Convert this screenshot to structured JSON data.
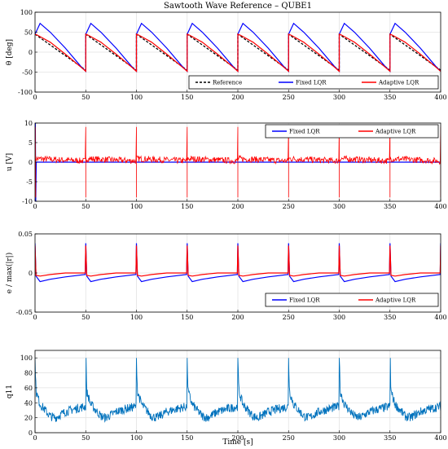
{
  "figure_title": "Sawtooth Wave Reference – QUBE1",
  "x_axis_label": "Time [s]",
  "colors": {
    "reference": "#000000",
    "fixed": "#0000ff",
    "adaptive": "#ff0000",
    "q11": "#0072bd",
    "grid": "#e3e3e3"
  },
  "chart_data": [
    {
      "type": "line",
      "ylabel": "θ [deg]",
      "xlim": [
        0,
        400
      ],
      "ylim": [
        -100,
        100
      ],
      "x_ticks": [
        0,
        50,
        100,
        150,
        200,
        250,
        300,
        350,
        400
      ],
      "y_ticks": [
        -100,
        -50,
        0,
        50,
        100
      ],
      "grid": true,
      "legend_position": "bottom-right",
      "period": 50,
      "series": [
        {
          "name": "Reference",
          "style": "dashed",
          "color": "#000000",
          "x": [
            0,
            50
          ],
          "y": [
            45,
            -45
          ]
        },
        {
          "name": "Fixed LQR",
          "style": "solid",
          "color": "#0000ff",
          "x": [
            0,
            5,
            15,
            30,
            45,
            50
          ],
          "y": [
            45,
            72,
            50,
            10,
            -35,
            -48
          ]
        },
        {
          "name": "Adaptive LQR",
          "style": "solid",
          "color": "#ff0000",
          "x": [
            0,
            2,
            15,
            30,
            45,
            50
          ],
          "y": [
            45,
            43,
            25,
            -5,
            -37,
            -48
          ]
        }
      ]
    },
    {
      "type": "line",
      "ylabel": "u [V]",
      "xlim": [
        0,
        400
      ],
      "ylim": [
        -10,
        10
      ],
      "x_ticks": [
        0,
        50,
        100,
        150,
        200,
        250,
        300,
        350,
        400
      ],
      "y_ticks": [
        -10,
        -5,
        0,
        5,
        10
      ],
      "grid": true,
      "legend_position": "top-right",
      "series": [
        {
          "name": "Fixed LQR",
          "color": "#0000ff",
          "baseline": 0,
          "spike_high": 10,
          "spike_low": -10
        },
        {
          "name": "Adaptive LQR",
          "color": "#ff0000",
          "baseline": 0.3,
          "noise_amplitude": 0.8,
          "spike_high": 9,
          "spike_low": -9
        }
      ]
    },
    {
      "type": "line",
      "ylabel": "e / max(|r|)",
      "xlim": [
        0,
        400
      ],
      "ylim": [
        -0.05,
        0.05
      ],
      "x_ticks": [
        0,
        50,
        100,
        150,
        200,
        250,
        300,
        350,
        400
      ],
      "y_ticks": [
        -0.05,
        0,
        0.05
      ],
      "y_tick_labels": [
        "-0.05",
        "0",
        "0.05"
      ],
      "grid": true,
      "legend_position": "bottom-right",
      "period": 50,
      "series": [
        {
          "name": "Fixed LQR",
          "color": "#0000ff",
          "x": [
            0,
            1,
            5,
            15,
            30,
            49.5,
            50
          ],
          "y": [
            0.038,
            -0.004,
            -0.011,
            -0.008,
            -0.005,
            -0.002,
            0.038
          ]
        },
        {
          "name": "Adaptive LQR",
          "color": "#ff0000",
          "x": [
            0,
            1,
            5,
            15,
            30,
            49.5,
            50
          ],
          "y": [
            0.035,
            -0.003,
            -0.004,
            -0.002,
            0.0,
            0.0,
            0.035
          ]
        }
      ]
    },
    {
      "type": "line",
      "ylabel": "q11",
      "xlim": [
        0,
        400
      ],
      "ylim": [
        0,
        110
      ],
      "x_ticks": [
        0,
        50,
        100,
        150,
        200,
        250,
        300,
        350,
        400
      ],
      "y_ticks": [
        0,
        20,
        40,
        60,
        80,
        100
      ],
      "grid": true,
      "period": 50,
      "series": [
        {
          "name": "q11",
          "color": "#0072bd",
          "x": [
            0,
            1,
            5,
            10,
            15,
            20,
            30,
            40,
            49.5
          ],
          "y": [
            100,
            55,
            38,
            30,
            22,
            20,
            28,
            32,
            35
          ],
          "noise_amplitude": 6
        }
      ]
    }
  ]
}
